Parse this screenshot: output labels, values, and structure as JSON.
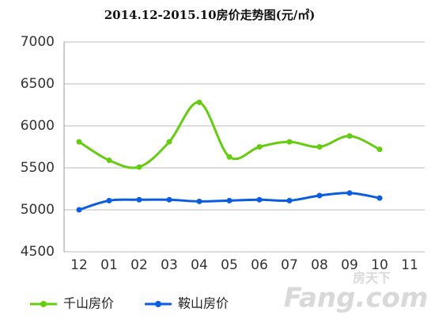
{
  "chart_data": {
    "type": "line",
    "title": "2014.12-2015.10房价走势图(元/㎡)",
    "categories": [
      "12",
      "01",
      "02",
      "03",
      "04",
      "05",
      "06",
      "07",
      "08",
      "09",
      "10",
      "11"
    ],
    "series": [
      {
        "name": "千山房价",
        "color": "#66cc11",
        "values": [
          5810,
          5590,
          5510,
          5810,
          6280,
          5630,
          5750,
          5810,
          5750,
          5880,
          5720,
          null
        ]
      },
      {
        "name": "鞍山房价",
        "color": "#0a5ce0",
        "values": [
          5000,
          5110,
          5120,
          5120,
          5100,
          5110,
          5120,
          5110,
          5170,
          5200,
          5140,
          null
        ]
      }
    ],
    "ylim": [
      4500,
      7000
    ],
    "yticks": [
      4500,
      5000,
      5500,
      6000,
      6500,
      7000
    ],
    "grid": true,
    "smooth": true,
    "legend": "bottom",
    "watermark": {
      "brand": "Fang.com",
      "cn": "房天下"
    }
  }
}
